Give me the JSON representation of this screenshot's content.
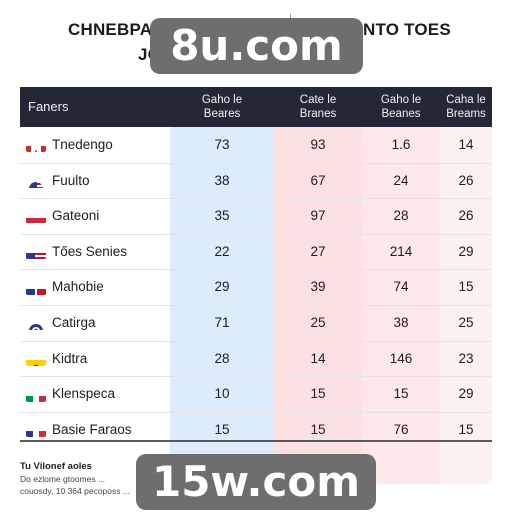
{
  "title": {
    "line1_left": "CHNEBPAI",
    "line1_right": "NTO TOES",
    "line2_left": "JO",
    "line2_right": "S"
  },
  "watermarks": {
    "top": "8u.com",
    "bottom": "15w.com"
  },
  "table": {
    "first_header": "Faners",
    "headers": [
      [
        "Gaho le",
        "Beares"
      ],
      [
        "Cate le",
        "Branes"
      ],
      [
        "Gaho le",
        "Beanes"
      ],
      [
        "Caha le",
        "Breams"
      ]
    ],
    "column_tints": [
      "#dcecfb",
      "#fbe1e1",
      "#fde9e9",
      "#fdf1f1"
    ],
    "rows": [
      {
        "flag": "canada-flag",
        "name": "Tnedengo",
        "values": [
          "73",
          "93",
          "1.6",
          "14"
        ]
      },
      {
        "flag": "round-usa-flag",
        "name": "Fuulto",
        "values": [
          "38",
          "67",
          "24",
          "26"
        ]
      },
      {
        "flag": "hungary-flag",
        "name": "Gateoni",
        "values": [
          "35",
          "97",
          "28",
          "26"
        ]
      },
      {
        "flag": "usa-flag",
        "name": "Tőes Senies",
        "values": [
          "22",
          "27",
          "214",
          "29"
        ]
      },
      {
        "flag": "dominican-flag",
        "name": "Mahobie",
        "values": [
          "29",
          "39",
          "74",
          "15"
        ]
      },
      {
        "flag": "round-crest-flag",
        "name": "Catirga",
        "values": [
          "71",
          "25",
          "38",
          "25"
        ]
      },
      {
        "flag": "ecuador-flag",
        "name": "Kidtra",
        "values": [
          "28",
          "14",
          "146",
          "23"
        ]
      },
      {
        "flag": "italy-flag",
        "name": "Klenspeca",
        "values": [
          "10",
          "15",
          "15",
          "29"
        ]
      },
      {
        "flag": "france-flag",
        "name": "Basie Faraos",
        "values": [
          "15",
          "15",
          "76",
          "15"
        ]
      }
    ]
  },
  "footnote": {
    "title": "Tu Vilonef aoles",
    "line1": "Do ezlome gtoomes ...",
    "line2": "couosdy, 10 364 pecoposs ..."
  }
}
